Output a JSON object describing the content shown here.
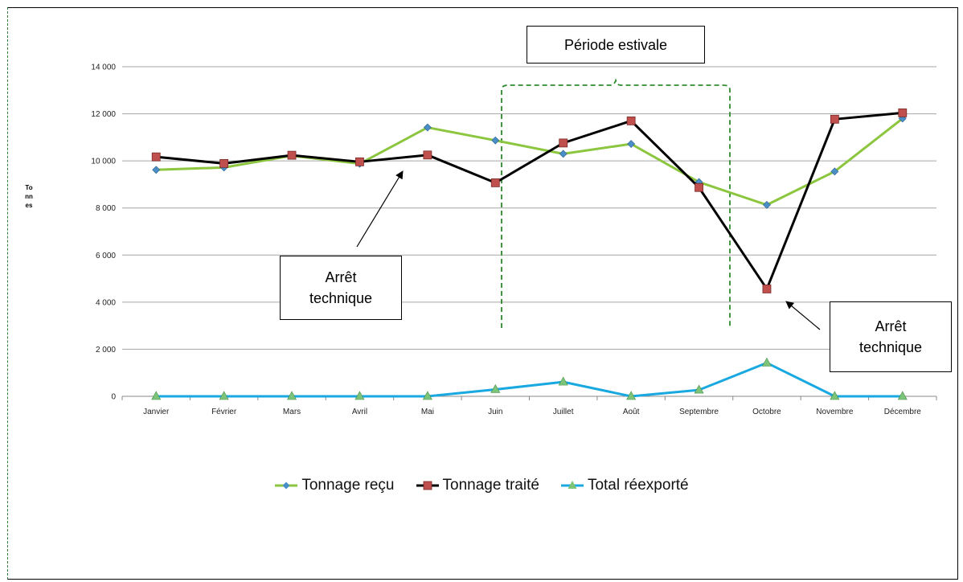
{
  "chart_data": {
    "type": "line",
    "categories": [
      "Janvier",
      "Février",
      "Mars",
      "Avril",
      "Mai",
      "Juin",
      "Juillet",
      "Août",
      "Septembre",
      "Octobre",
      "Novembre",
      "Décembre"
    ],
    "series": [
      {
        "name": "Tonnage reçu",
        "color": "#8cc63f",
        "marker": "diamond",
        "marker_color": "#4a8ec8",
        "values": [
          9620,
          9720,
          10220,
          9880,
          11420,
          10870,
          10300,
          10720,
          9100,
          8130,
          9550,
          11800
        ]
      },
      {
        "name": "Tonnage traité",
        "color": "#000000",
        "marker": "square",
        "marker_color": "#c0504d",
        "values": [
          10170,
          9890,
          10240,
          9960,
          10250,
          9070,
          10760,
          11700,
          8870,
          4560,
          11770,
          12040
        ]
      },
      {
        "name": "Total réexporté",
        "color": "#19a9e0",
        "marker": "triangle",
        "marker_color": "#7cc47a",
        "values": [
          0,
          0,
          0,
          0,
          0,
          290,
          610,
          0,
          270,
          1420,
          0,
          0
        ]
      }
    ],
    "ylim": [
      0,
      14000
    ],
    "yticks": [
      0,
      2000,
      4000,
      6000,
      8000,
      10000,
      12000,
      14000
    ],
    "ytick_labels": [
      "0",
      "2 000",
      "4 000",
      "6 000",
      "8 000",
      "10 000",
      "12 000",
      "14 000"
    ],
    "ylabel": "Tonnes",
    "xlabel": "",
    "grid": true,
    "legend_position": "bottom",
    "annotations": {
      "period_label": "Période estivale",
      "arret_1": "Arrêt\ntechnique",
      "arret_2": "Arrêt\ntechnique"
    }
  }
}
